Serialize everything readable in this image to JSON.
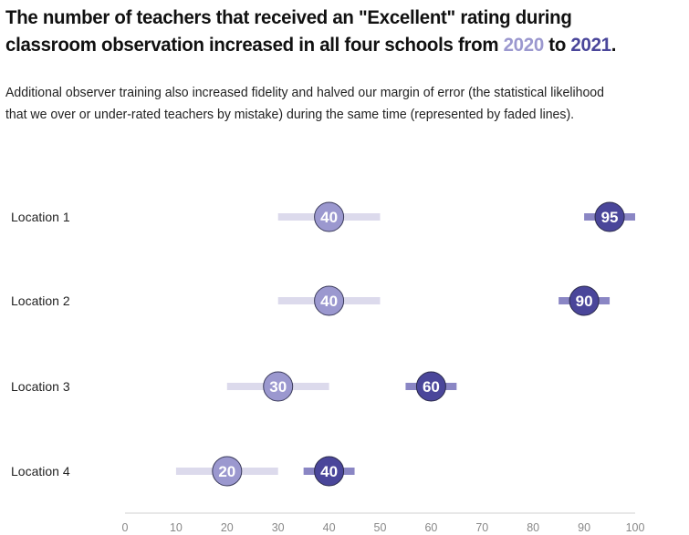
{
  "title": {
    "line1": "The number of teachers that received an \"Excellent\" rating during",
    "line2_prefix": "classroom observation increased in all four schools from ",
    "year1": "2020",
    "connector": " to ",
    "year2": "2021",
    "end": "."
  },
  "subtitle": {
    "line1": "Additional observer training also increased fidelity and halved our margin of error (the statistical likelihood",
    "line2": "that we over or under-rated teachers by mistake) during the same time (represented by faded lines)."
  },
  "chart_data": {
    "type": "dot-plot",
    "x_ticks": [
      0,
      10,
      20,
      30,
      40,
      50,
      60,
      70,
      80,
      90,
      100
    ],
    "xlim": [
      0,
      100
    ],
    "grid": false,
    "colors": {
      "2020_dot": "#9b98cf",
      "2020_error": "#dcdaec",
      "2021_dot": "#4a469a",
      "2021_error": "#8a86c4"
    },
    "categories": [
      "Location 1",
      "Location 2",
      "Location 3",
      "Location 4"
    ],
    "series": [
      {
        "name": "2020",
        "values": [
          40,
          40,
          30,
          20
        ],
        "error_low": [
          30,
          30,
          20,
          10
        ],
        "error_high": [
          50,
          50,
          40,
          30
        ]
      },
      {
        "name": "2021",
        "values": [
          95,
          90,
          60,
          40
        ],
        "error_low": [
          90,
          85,
          55,
          35
        ],
        "error_high": [
          100,
          95,
          65,
          45
        ]
      }
    ]
  }
}
